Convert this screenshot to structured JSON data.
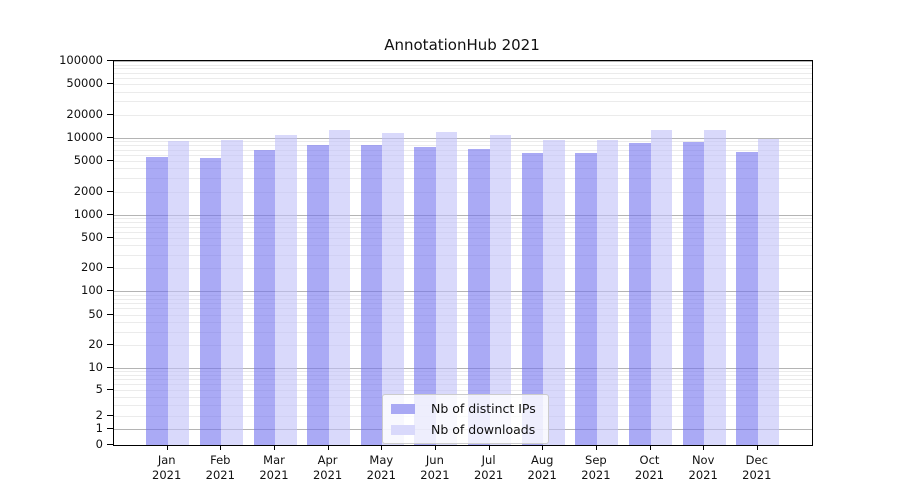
{
  "title": "AnnotationHub 2021",
  "legend": {
    "items": [
      {
        "label": "Nb of distinct IPs",
        "color": "#a9a9f4",
        "fill": "rgba(113,113,238,0.6)"
      },
      {
        "label": "Nb of downloads",
        "color": "#d9d9fb",
        "fill": "rgba(192,192,248,0.6)"
      }
    ]
  },
  "chart_data": {
    "type": "bar",
    "title": "AnnotationHub 2021",
    "categories": [
      "Jan 2021",
      "Feb 2021",
      "Mar 2021",
      "Apr 2021",
      "May 2021",
      "Jun 2021",
      "Jul 2021",
      "Aug 2021",
      "Sep 2021",
      "Oct 2021",
      "Nov 2021",
      "Dec 2021"
    ],
    "series": [
      {
        "name": "Nb of distinct IPs",
        "values": [
          5600,
          5400,
          6900,
          8000,
          8100,
          7700,
          7100,
          6300,
          6300,
          8500,
          8700,
          6600
        ]
      },
      {
        "name": "Nb of downloads",
        "values": [
          9000,
          9400,
          10800,
          12700,
          11400,
          11800,
          10800,
          9300,
          9500,
          12600,
          12700,
          9700
        ]
      }
    ],
    "yscale": "symlog (asinh-like, linear near zero)",
    "yticks": [
      0,
      1,
      2,
      5,
      10,
      20,
      50,
      100,
      200,
      500,
      1000,
      2000,
      5000,
      10000,
      20000,
      50000,
      100000
    ],
    "ylim": [
      0,
      100000
    ],
    "grid": true,
    "grid_major_at_powers_of_10": true,
    "legend_position": "lower center inside plot",
    "colors": {
      "grid_major": "#b4b4b4",
      "grid_minor": "#ebebeb",
      "axis": "#000000",
      "bar_distinct_ips": "#a9a9f4",
      "bar_downloads": "#d9d9fb"
    }
  }
}
